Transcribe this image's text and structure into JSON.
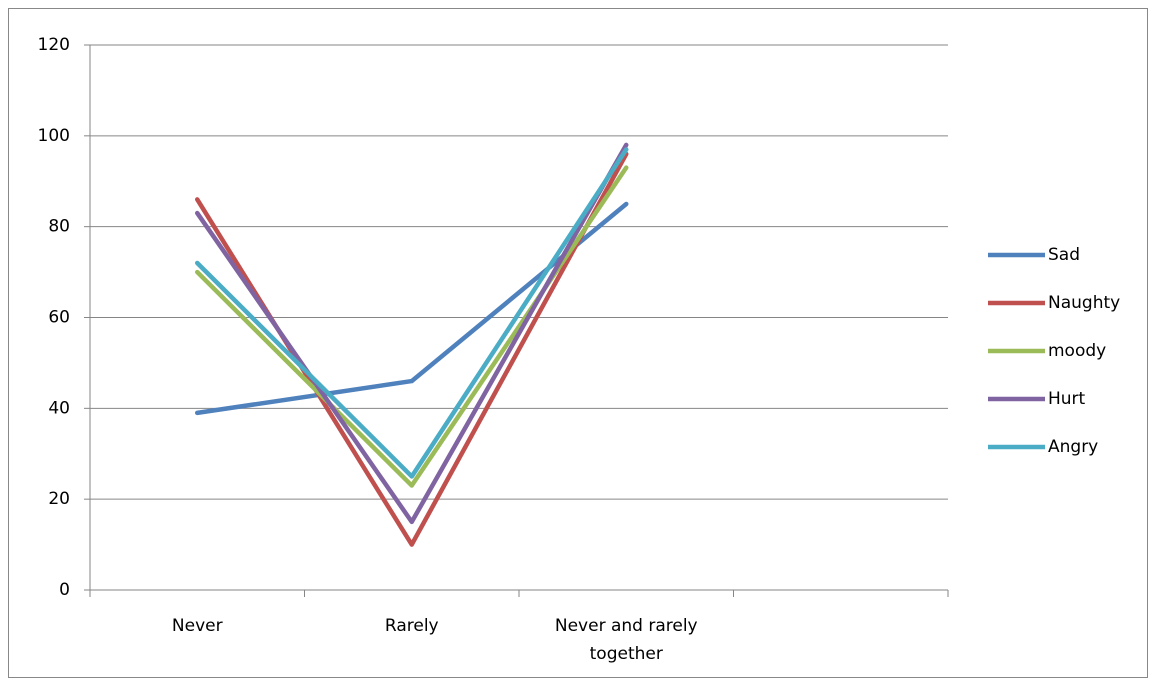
{
  "chart_data": {
    "type": "line",
    "categories": [
      "Never",
      "Rarely",
      "Never and rarely together",
      null
    ],
    "series": [
      {
        "name": "Sad",
        "color": "#4f81bd",
        "values": [
          39,
          46,
          85,
          null
        ]
      },
      {
        "name": "Naughty",
        "color": "#c0504d",
        "values": [
          86,
          10,
          96,
          null
        ]
      },
      {
        "name": "moody",
        "color": "#9bbb59",
        "values": [
          70,
          23,
          93,
          null
        ]
      },
      {
        "name": "Hurt",
        "color": "#8064a2",
        "values": [
          83,
          15,
          98,
          null
        ]
      },
      {
        "name": "Angry",
        "color": "#4bacc6",
        "values": [
          72,
          25,
          97,
          null
        ]
      }
    ],
    "ylim": [
      0,
      120
    ],
    "yticks": [
      0,
      20,
      40,
      60,
      80,
      100,
      120
    ],
    "grid": true,
    "legend": "right"
  }
}
